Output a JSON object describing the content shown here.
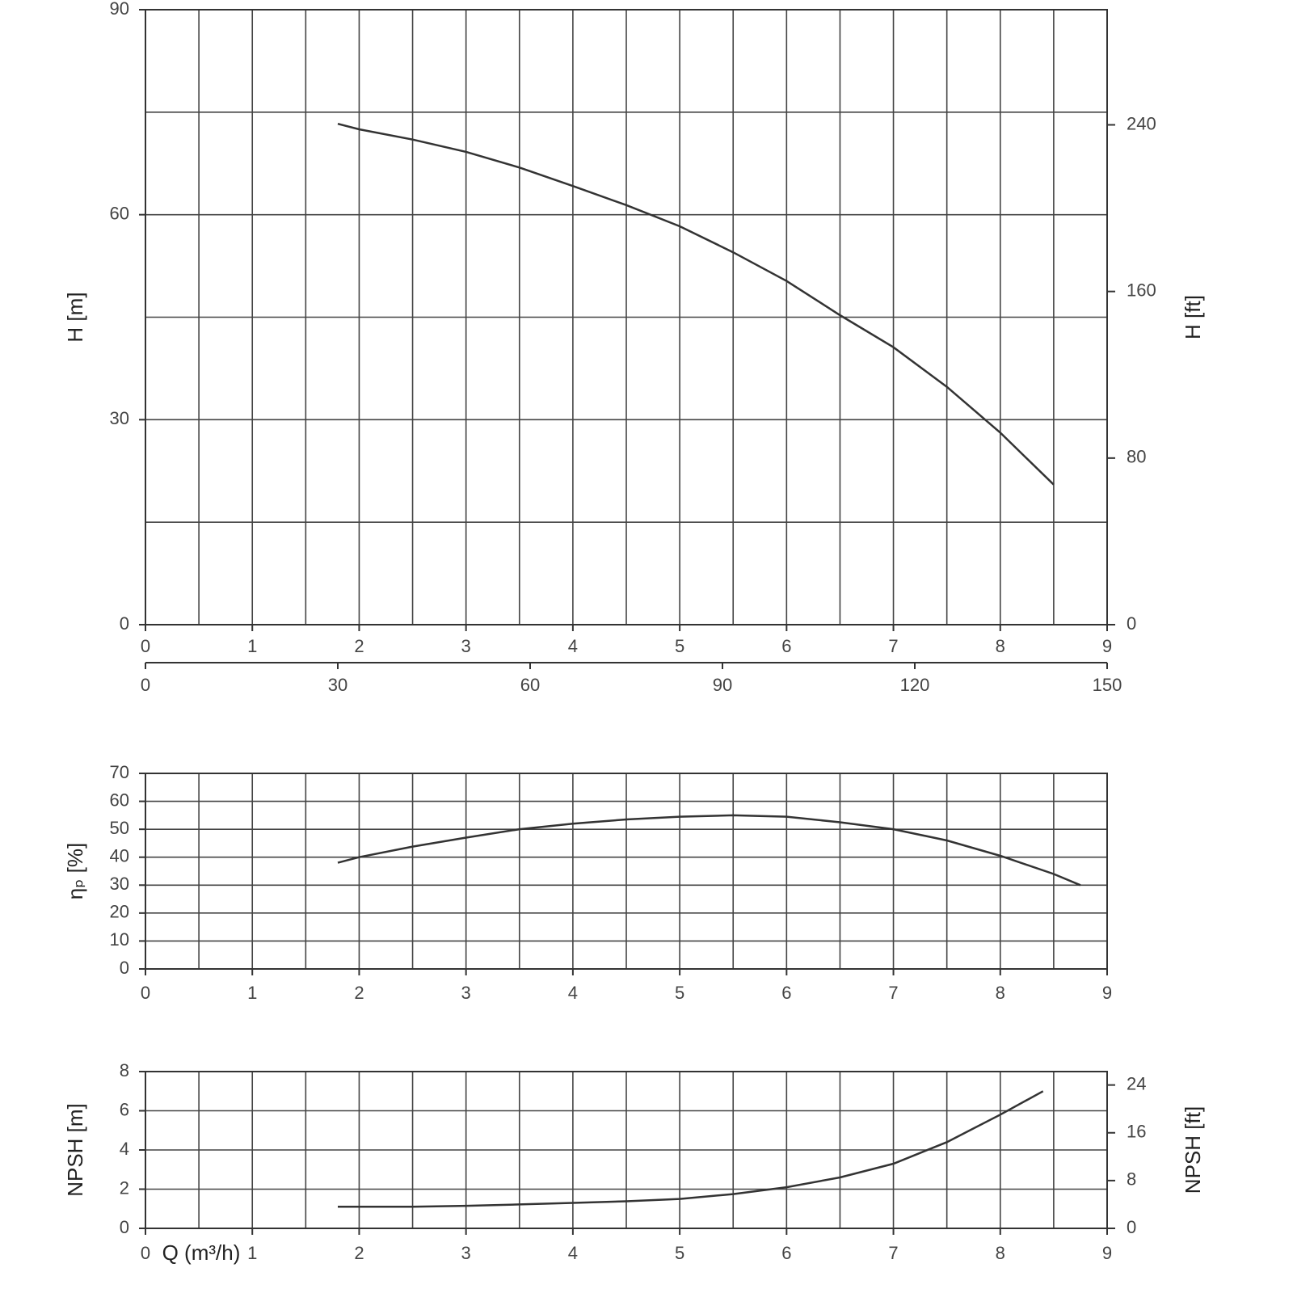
{
  "chart_data": [
    {
      "type": "line",
      "ylabel": "H [m]",
      "y2label": "H [ft]",
      "xlim": [
        0,
        9
      ],
      "xticks": [
        0,
        1,
        2,
        3,
        4,
        5,
        6,
        7,
        8,
        9
      ],
      "xgrid": [
        0,
        0.5,
        1,
        1.5,
        2,
        2.5,
        3,
        3.5,
        4,
        4.5,
        5,
        5.5,
        6,
        6.5,
        7,
        7.5,
        8,
        8.5,
        9
      ],
      "ylim": [
        0,
        90
      ],
      "yticks": [
        0,
        30,
        60,
        90
      ],
      "ygrid": [
        0,
        15,
        30,
        45,
        60,
        75,
        90
      ],
      "y2lim": [
        0,
        295.3
      ],
      "y2ticks": [
        0,
        80,
        160,
        240
      ],
      "x2lim": [
        0,
        150
      ],
      "x2ticks": [
        0,
        30,
        60,
        90,
        120,
        150
      ],
      "series": [
        {
          "color": "#333333",
          "x": [
            1.8,
            2,
            2.5,
            3,
            3.5,
            4,
            4.5,
            5,
            5.5,
            6,
            6.5,
            7,
            7.5,
            8,
            8.5
          ],
          "values": [
            73.3,
            72.5,
            71.0,
            69.2,
            66.9,
            64.2,
            61.4,
            58.3,
            54.5,
            50.3,
            45.3,
            40.6,
            34.8,
            28.1,
            20.5
          ]
        }
      ]
    },
    {
      "type": "line",
      "ylabel": "ηₚ [%]",
      "xlim": [
        0,
        9
      ],
      "xticks": [
        0,
        1,
        2,
        3,
        4,
        5,
        6,
        7,
        8,
        9
      ],
      "xgrid": [
        0,
        0.5,
        1,
        1.5,
        2,
        2.5,
        3,
        3.5,
        4,
        4.5,
        5,
        5.5,
        6,
        6.5,
        7,
        7.5,
        8,
        8.5,
        9
      ],
      "ylim": [
        0,
        70
      ],
      "yticks": [
        0,
        10,
        20,
        30,
        40,
        50,
        60,
        70
      ],
      "series": [
        {
          "color": "#333333",
          "x": [
            1.8,
            2,
            2.5,
            3,
            3.5,
            4,
            4.5,
            5,
            5.5,
            6,
            6.5,
            7,
            7.5,
            8,
            8.5,
            8.75
          ],
          "values": [
            38,
            40,
            43.8,
            47,
            50,
            52,
            53.5,
            54.5,
            55,
            54.5,
            52.5,
            50,
            46,
            40.5,
            34,
            30
          ]
        }
      ]
    },
    {
      "type": "line",
      "ylabel": "NPSH [m]",
      "y2label": "NPSH [ft]",
      "xlabel": "Q (m³/h)",
      "xlim": [
        0,
        9
      ],
      "xticks": [
        0,
        1,
        2,
        3,
        4,
        5,
        6,
        7,
        8,
        9
      ],
      "xgrid": [
        0,
        0.5,
        1,
        1.5,
        2,
        2.5,
        3,
        3.5,
        4,
        4.5,
        5,
        5.5,
        6,
        6.5,
        7,
        7.5,
        8,
        8.5,
        9
      ],
      "ylim": [
        0,
        8
      ],
      "yticks": [
        0,
        2,
        4,
        6,
        8
      ],
      "y2lim": [
        0,
        26.25
      ],
      "y2ticks": [
        0,
        8,
        16,
        24
      ],
      "series": [
        {
          "color": "#333333",
          "x": [
            1.8,
            2.5,
            3,
            3.5,
            4,
            4.5,
            5,
            5.5,
            6,
            6.5,
            7,
            7.5,
            8,
            8.4
          ],
          "values": [
            1.1,
            1.1,
            1.15,
            1.22,
            1.3,
            1.38,
            1.5,
            1.75,
            2.1,
            2.6,
            3.3,
            4.4,
            5.8,
            7.0
          ]
        }
      ]
    }
  ]
}
